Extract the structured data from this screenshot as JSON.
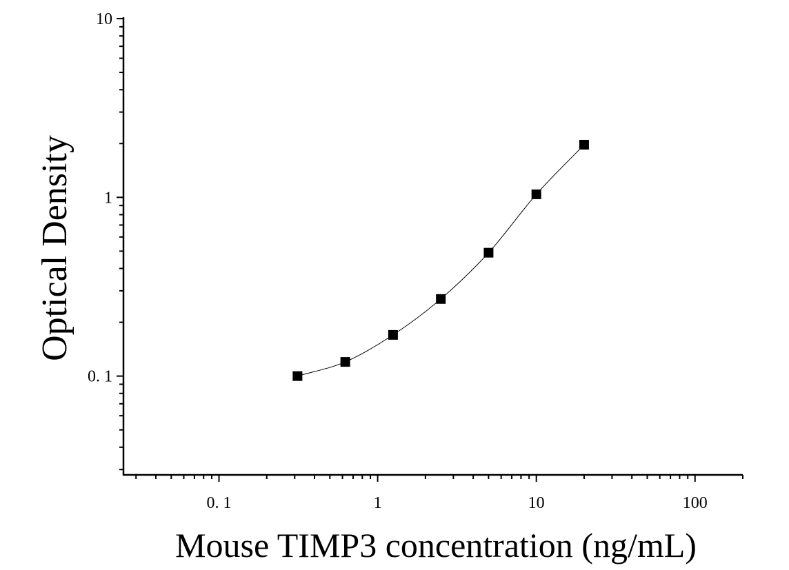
{
  "chart_data": {
    "type": "scatter",
    "title": "",
    "xlabel": "Mouse TIMP3 concentration (ng/mL)",
    "ylabel": "Optical Density",
    "x_scale": "log",
    "y_scale": "log",
    "xlim": [
      0.025,
      200
    ],
    "ylim": [
      0.028,
      10
    ],
    "x_tick_labels": [
      {
        "value": 0.1,
        "label": "0. 1"
      },
      {
        "value": 1,
        "label": "1"
      },
      {
        "value": 10,
        "label": "10"
      },
      {
        "value": 100,
        "label": "100"
      }
    ],
    "y_tick_labels": [
      {
        "value": 0.1,
        "label": "0. 1"
      },
      {
        "value": 1,
        "label": "1"
      },
      {
        "value": 10,
        "label": "10"
      }
    ],
    "series": [
      {
        "x": [
          0.3125,
          0.625,
          1.25,
          2.5,
          5,
          10,
          20
        ],
        "y": [
          0.1,
          0.12,
          0.17,
          0.27,
          0.49,
          1.04,
          1.97
        ],
        "marker": "square",
        "fit_line": true
      }
    ],
    "grid": false,
    "legend": "none",
    "color": "#000000"
  }
}
